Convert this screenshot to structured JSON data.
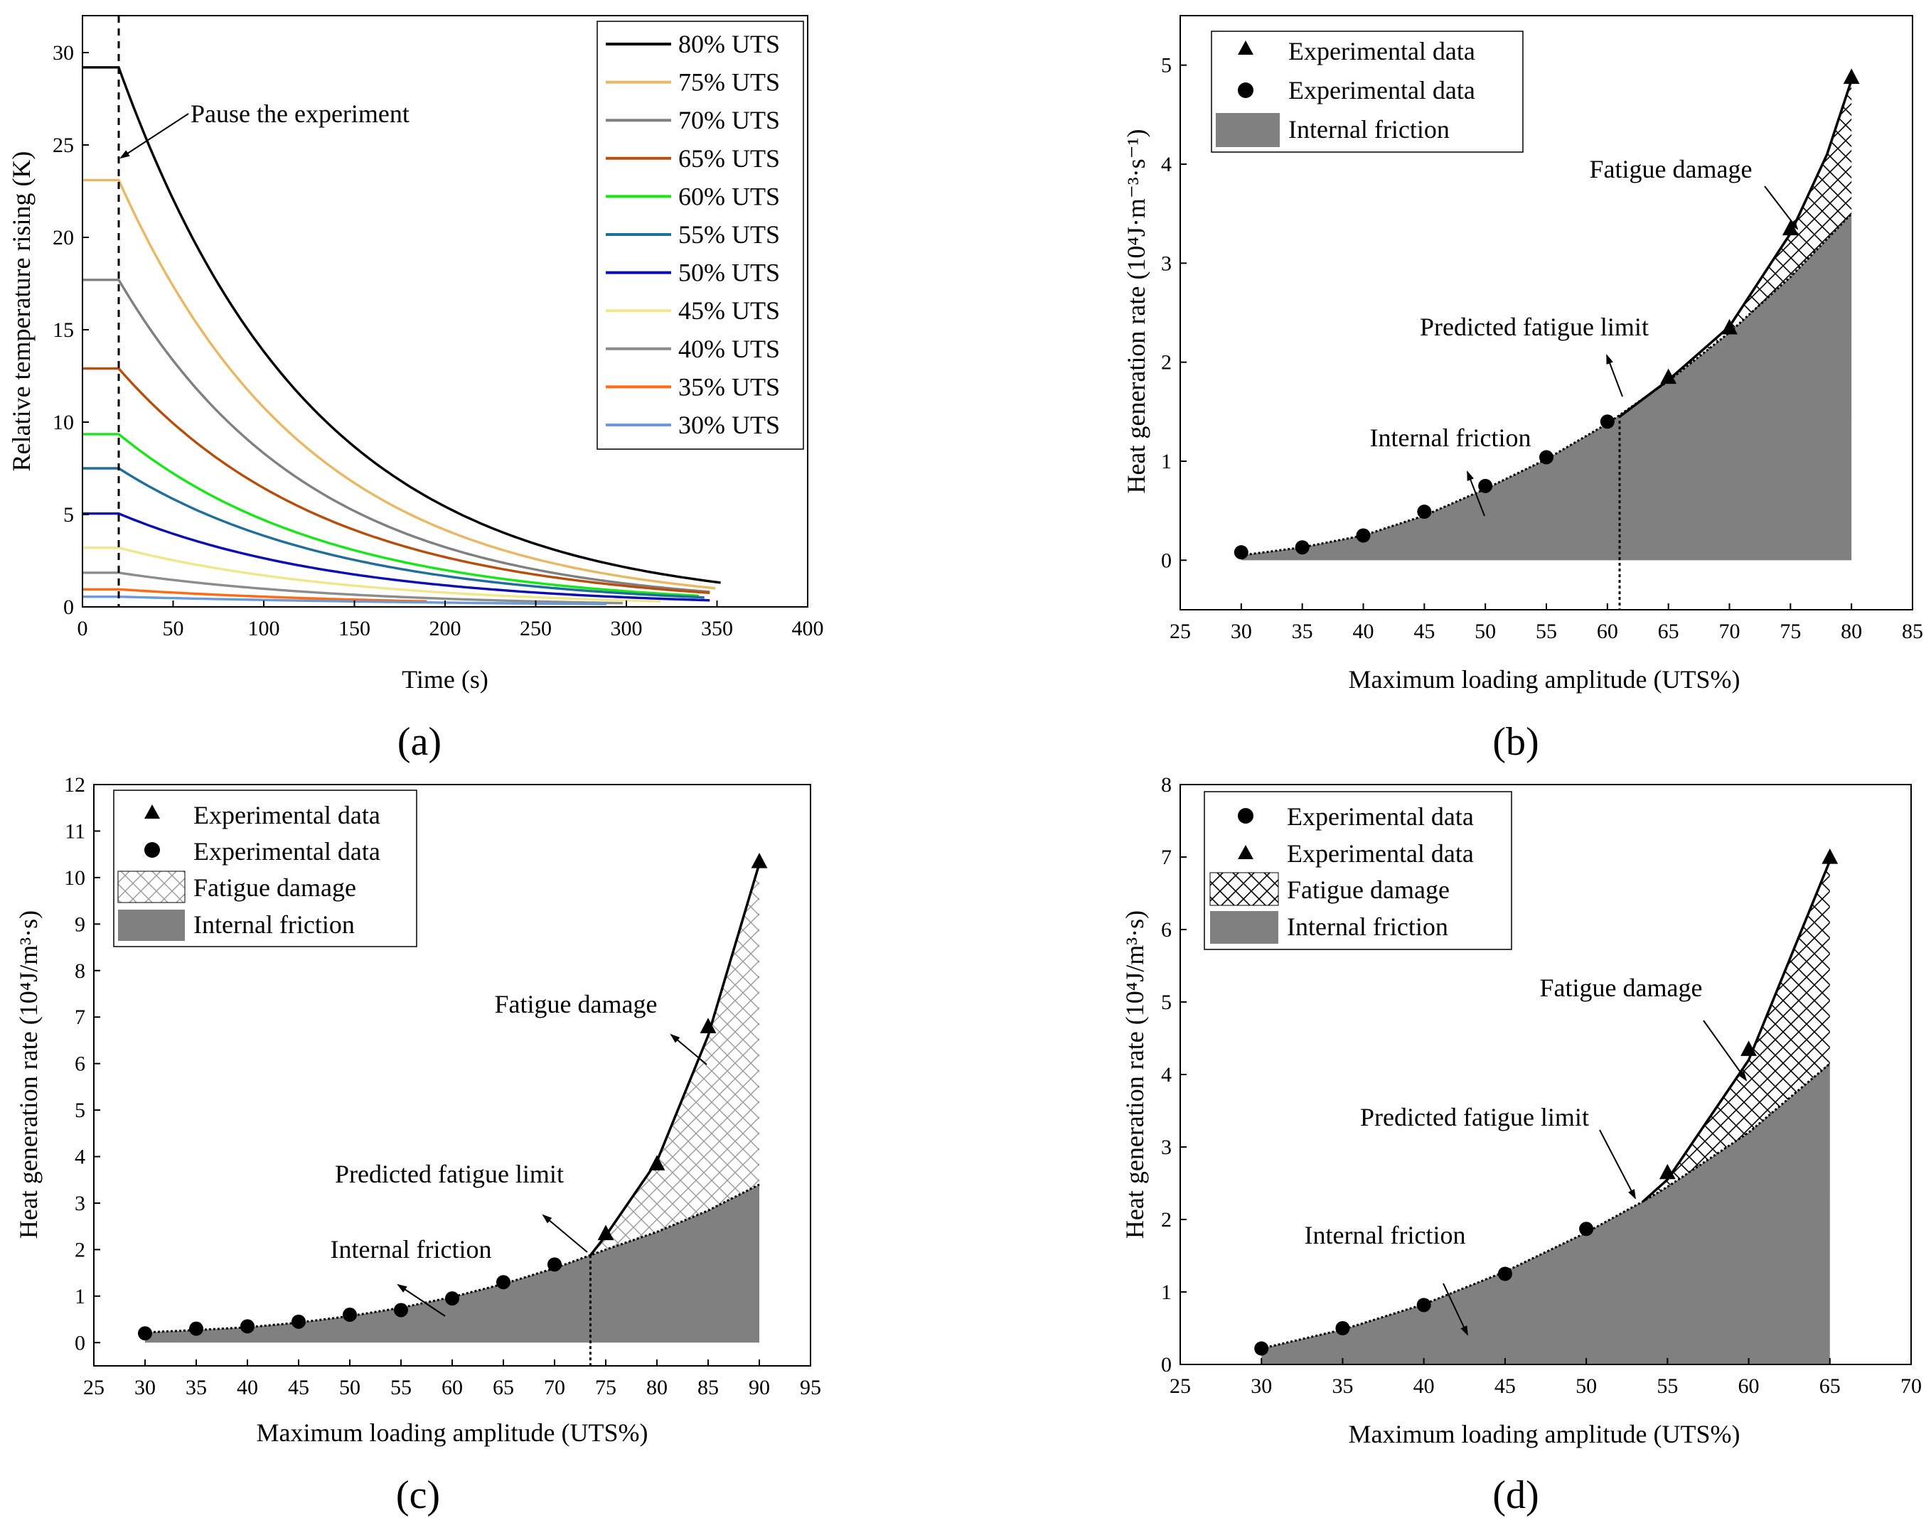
{
  "panel_labels": [
    "(a)",
    "(b)",
    "(c)",
    "(d)"
  ],
  "chart_data": [
    {
      "id": "a",
      "type": "line",
      "panel_label": "(a)",
      "xlabel": "Time (s)",
      "ylabel": "Relative temperature rising (K)",
      "xlim": [
        0,
        400
      ],
      "ylim": [
        0,
        32
      ],
      "xticks": [
        0,
        50,
        100,
        150,
        200,
        250,
        300,
        350,
        400
      ],
      "yticks": [
        0,
        5,
        10,
        15,
        20,
        25,
        30
      ],
      "grid": false,
      "legend_position": "top-right",
      "pause_time": 20,
      "annotations": [
        {
          "text": "Pause the experiment"
        }
      ],
      "series": [
        {
          "name": "80% UTS",
          "color": "#000000",
          "initial": 29.2,
          "end_time": 353,
          "end_value": 1.3
        },
        {
          "name": "75% UTS",
          "color": "#e8b864",
          "initial": 23.1,
          "end_time": 350,
          "end_value": 1.0
        },
        {
          "name": "70% UTS",
          "color": "#808080",
          "initial": 17.7,
          "end_time": 348,
          "end_value": 0.8
        },
        {
          "name": "65% UTS",
          "color": "#b84e0c",
          "initial": 12.9,
          "end_time": 347,
          "end_value": 0.75
        },
        {
          "name": "60% UTS",
          "color": "#19e619",
          "initial": 9.35,
          "end_time": 340,
          "end_value": 0.6
        },
        {
          "name": "55% UTS",
          "color": "#1f6e9c",
          "initial": 7.5,
          "end_time": 345,
          "end_value": 0.5
        },
        {
          "name": "50% UTS",
          "color": "#0c0cb4",
          "initial": 5.05,
          "end_time": 348,
          "end_value": 0.35
        },
        {
          "name": "45% UTS",
          "color": "#f0e68c",
          "initial": 3.2,
          "end_time": 320,
          "end_value": 0.3
        },
        {
          "name": "40% UTS",
          "color": "#8c8c8c",
          "initial": 1.85,
          "end_time": 300,
          "end_value": 0.2
        },
        {
          "name": "35% UTS",
          "color": "#ff6a14",
          "initial": 0.95,
          "end_time": 190,
          "end_value": 0.3
        },
        {
          "name": "30% UTS",
          "color": "#6a9ad8",
          "initial": 0.55,
          "end_time": 290,
          "end_value": 0.15
        }
      ]
    },
    {
      "id": "b",
      "type": "area",
      "panel_label": "(b)",
      "xlabel": "Maximum loading amplitude (UTS%)",
      "ylabel": "Heat generation rate (10⁴J·m⁻³·s⁻¹)",
      "xlim": [
        25,
        85
      ],
      "ylim": [
        -0.5,
        5.5
      ],
      "xticks": [
        25,
        30,
        35,
        40,
        45,
        50,
        55,
        60,
        65,
        70,
        75,
        80,
        85
      ],
      "yticks": [
        0,
        1,
        2,
        3,
        4,
        5
      ],
      "grid": false,
      "legend_position": "top-left",
      "legend": [
        "Experimental data",
        "Experimental data",
        "Internal friction"
      ],
      "circles": [
        [
          30,
          0.08
        ],
        [
          35,
          0.13
        ],
        [
          40,
          0.25
        ],
        [
          45,
          0.49
        ],
        [
          50,
          0.75
        ],
        [
          55,
          1.04
        ],
        [
          60,
          1.4
        ]
      ],
      "triangles": [
        [
          65,
          1.85
        ],
        [
          70,
          2.35
        ],
        [
          75,
          3.35
        ],
        [
          80,
          4.88
        ]
      ],
      "friction_curve": [
        [
          30,
          0.05
        ],
        [
          35,
          0.13
        ],
        [
          40,
          0.25
        ],
        [
          45,
          0.45
        ],
        [
          50,
          0.72
        ],
        [
          55,
          1.02
        ],
        [
          60,
          1.38
        ],
        [
          65,
          1.81
        ],
        [
          70,
          2.3
        ],
        [
          75,
          2.86
        ],
        [
          80,
          3.5
        ]
      ],
      "damage_curve": [
        [
          61,
          1.45
        ],
        [
          65,
          1.82
        ],
        [
          70,
          2.36
        ],
        [
          75,
          3.3
        ],
        [
          78,
          4.1
        ],
        [
          80,
          4.85
        ]
      ],
      "fatigue_limit_x": 61,
      "annotations": [
        {
          "text": "Fatigue damage"
        },
        {
          "text": "Predicted fatigue limit"
        },
        {
          "text": "Internal friction"
        }
      ]
    },
    {
      "id": "c",
      "type": "area",
      "panel_label": "(c)",
      "xlabel": "Maximum loading amplitude (UTS%)",
      "ylabel": "Heat generation rate (10⁴J/m³·s)",
      "xlim": [
        25,
        95
      ],
      "ylim": [
        -0.5,
        12
      ],
      "xticks": [
        25,
        30,
        35,
        40,
        45,
        50,
        55,
        60,
        65,
        70,
        75,
        80,
        85,
        90,
        95
      ],
      "yticks": [
        0,
        1,
        2,
        3,
        4,
        5,
        6,
        7,
        8,
        9,
        10,
        11,
        12
      ],
      "grid": false,
      "legend_position": "top-left",
      "legend": [
        "Experimental data",
        "Experimental data",
        "Fatigue damage",
        "Internal friction"
      ],
      "circles": [
        [
          30,
          0.2
        ],
        [
          35,
          0.3
        ],
        [
          40,
          0.35
        ],
        [
          45,
          0.45
        ],
        [
          50,
          0.6
        ],
        [
          55,
          0.7
        ],
        [
          60,
          0.95
        ],
        [
          65,
          1.3
        ],
        [
          70,
          1.68
        ]
      ],
      "triangles": [
        [
          75,
          2.35
        ],
        [
          80,
          3.85
        ],
        [
          85,
          6.8
        ],
        [
          90,
          10.35
        ]
      ],
      "friction_curve": [
        [
          30,
          0.22
        ],
        [
          35,
          0.27
        ],
        [
          40,
          0.33
        ],
        [
          45,
          0.43
        ],
        [
          50,
          0.57
        ],
        [
          55,
          0.75
        ],
        [
          60,
          0.98
        ],
        [
          65,
          1.26
        ],
        [
          70,
          1.6
        ],
        [
          73.5,
          1.88
        ],
        [
          75,
          2.0
        ],
        [
          80,
          2.38
        ],
        [
          85,
          2.84
        ],
        [
          90,
          3.4
        ]
      ],
      "damage_curve": [
        [
          73.5,
          1.88
        ],
        [
          75,
          2.3
        ],
        [
          80,
          3.9
        ],
        [
          85,
          6.6
        ],
        [
          90,
          10.3
        ]
      ],
      "fatigue_limit_x": 73.5,
      "annotations": [
        {
          "text": "Fatigue damage"
        },
        {
          "text": "Predicted fatigue limit"
        },
        {
          "text": "Internal friction"
        }
      ]
    },
    {
      "id": "d",
      "type": "area",
      "panel_label": "(d)",
      "xlabel": "Maximum loading amplitude (UTS%)",
      "ylabel": "Heat generation rate (10⁴J/m³·s)",
      "xlim": [
        25,
        70
      ],
      "ylim": [
        0,
        8
      ],
      "xticks": [
        25,
        30,
        35,
        40,
        45,
        50,
        55,
        60,
        65,
        70
      ],
      "yticks": [
        0,
        1,
        2,
        3,
        4,
        5,
        6,
        7,
        8
      ],
      "grid": false,
      "legend_position": "top-left",
      "legend": [
        "Experimental data",
        "Experimental data",
        "Fatigue damage",
        "Internal friction"
      ],
      "circles": [
        [
          30,
          0.22
        ],
        [
          35,
          0.5
        ],
        [
          40,
          0.82
        ],
        [
          45,
          1.25
        ],
        [
          50,
          1.87
        ]
      ],
      "triangles": [
        [
          55,
          2.65
        ],
        [
          60,
          4.35
        ],
        [
          65,
          7.0
        ]
      ],
      "friction_curve": [
        [
          30,
          0.22
        ],
        [
          35,
          0.48
        ],
        [
          40,
          0.83
        ],
        [
          45,
          1.28
        ],
        [
          50,
          1.82
        ],
        [
          53.5,
          2.25
        ],
        [
          55,
          2.45
        ],
        [
          60,
          3.2
        ],
        [
          65,
          4.15
        ]
      ],
      "damage_curve": [
        [
          53.5,
          2.25
        ],
        [
          55,
          2.55
        ],
        [
          60,
          4.2
        ],
        [
          65,
          6.95
        ]
      ],
      "annotations": [
        {
          "text": "Fatigue damage"
        },
        {
          "text": "Predicted fatigue limit"
        },
        {
          "text": "Internal friction"
        }
      ]
    }
  ]
}
